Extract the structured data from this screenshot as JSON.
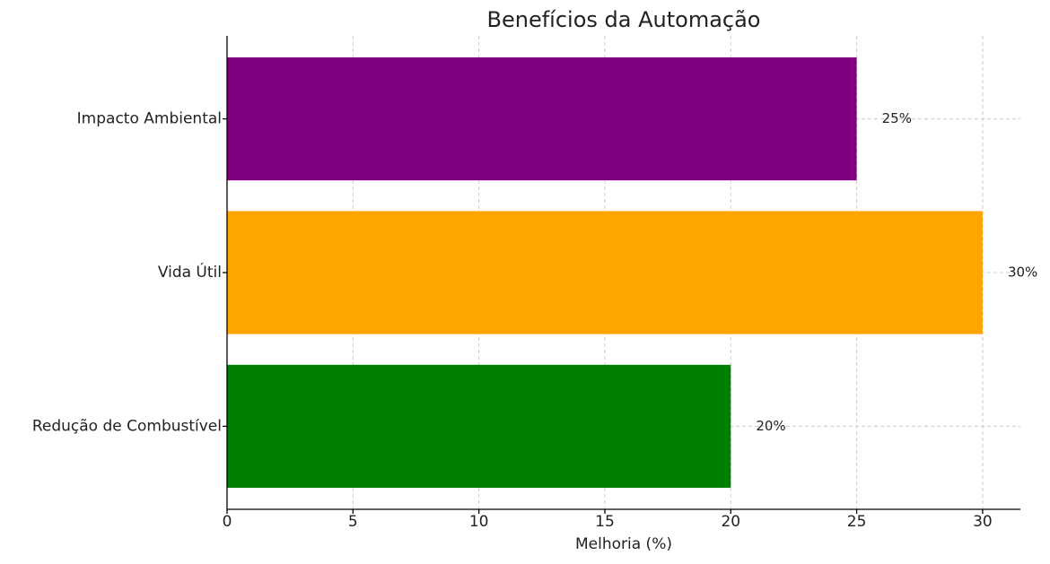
{
  "chart_data": {
    "type": "barh",
    "title": "Benefícios da Automação",
    "xlabel": "Melhoria (%)",
    "categories": [
      "Redução de Combustível",
      "Vida Útil",
      "Impacto Ambiental"
    ],
    "values": [
      20,
      30,
      25
    ],
    "value_labels": [
      "20%",
      "30%",
      "25%"
    ],
    "colors": [
      "#008000",
      "#ffa500",
      "#800080"
    ],
    "xlim": [
      0,
      31.5
    ],
    "xticks": [
      0,
      5,
      10,
      15,
      20,
      25,
      30
    ],
    "grid": true
  }
}
